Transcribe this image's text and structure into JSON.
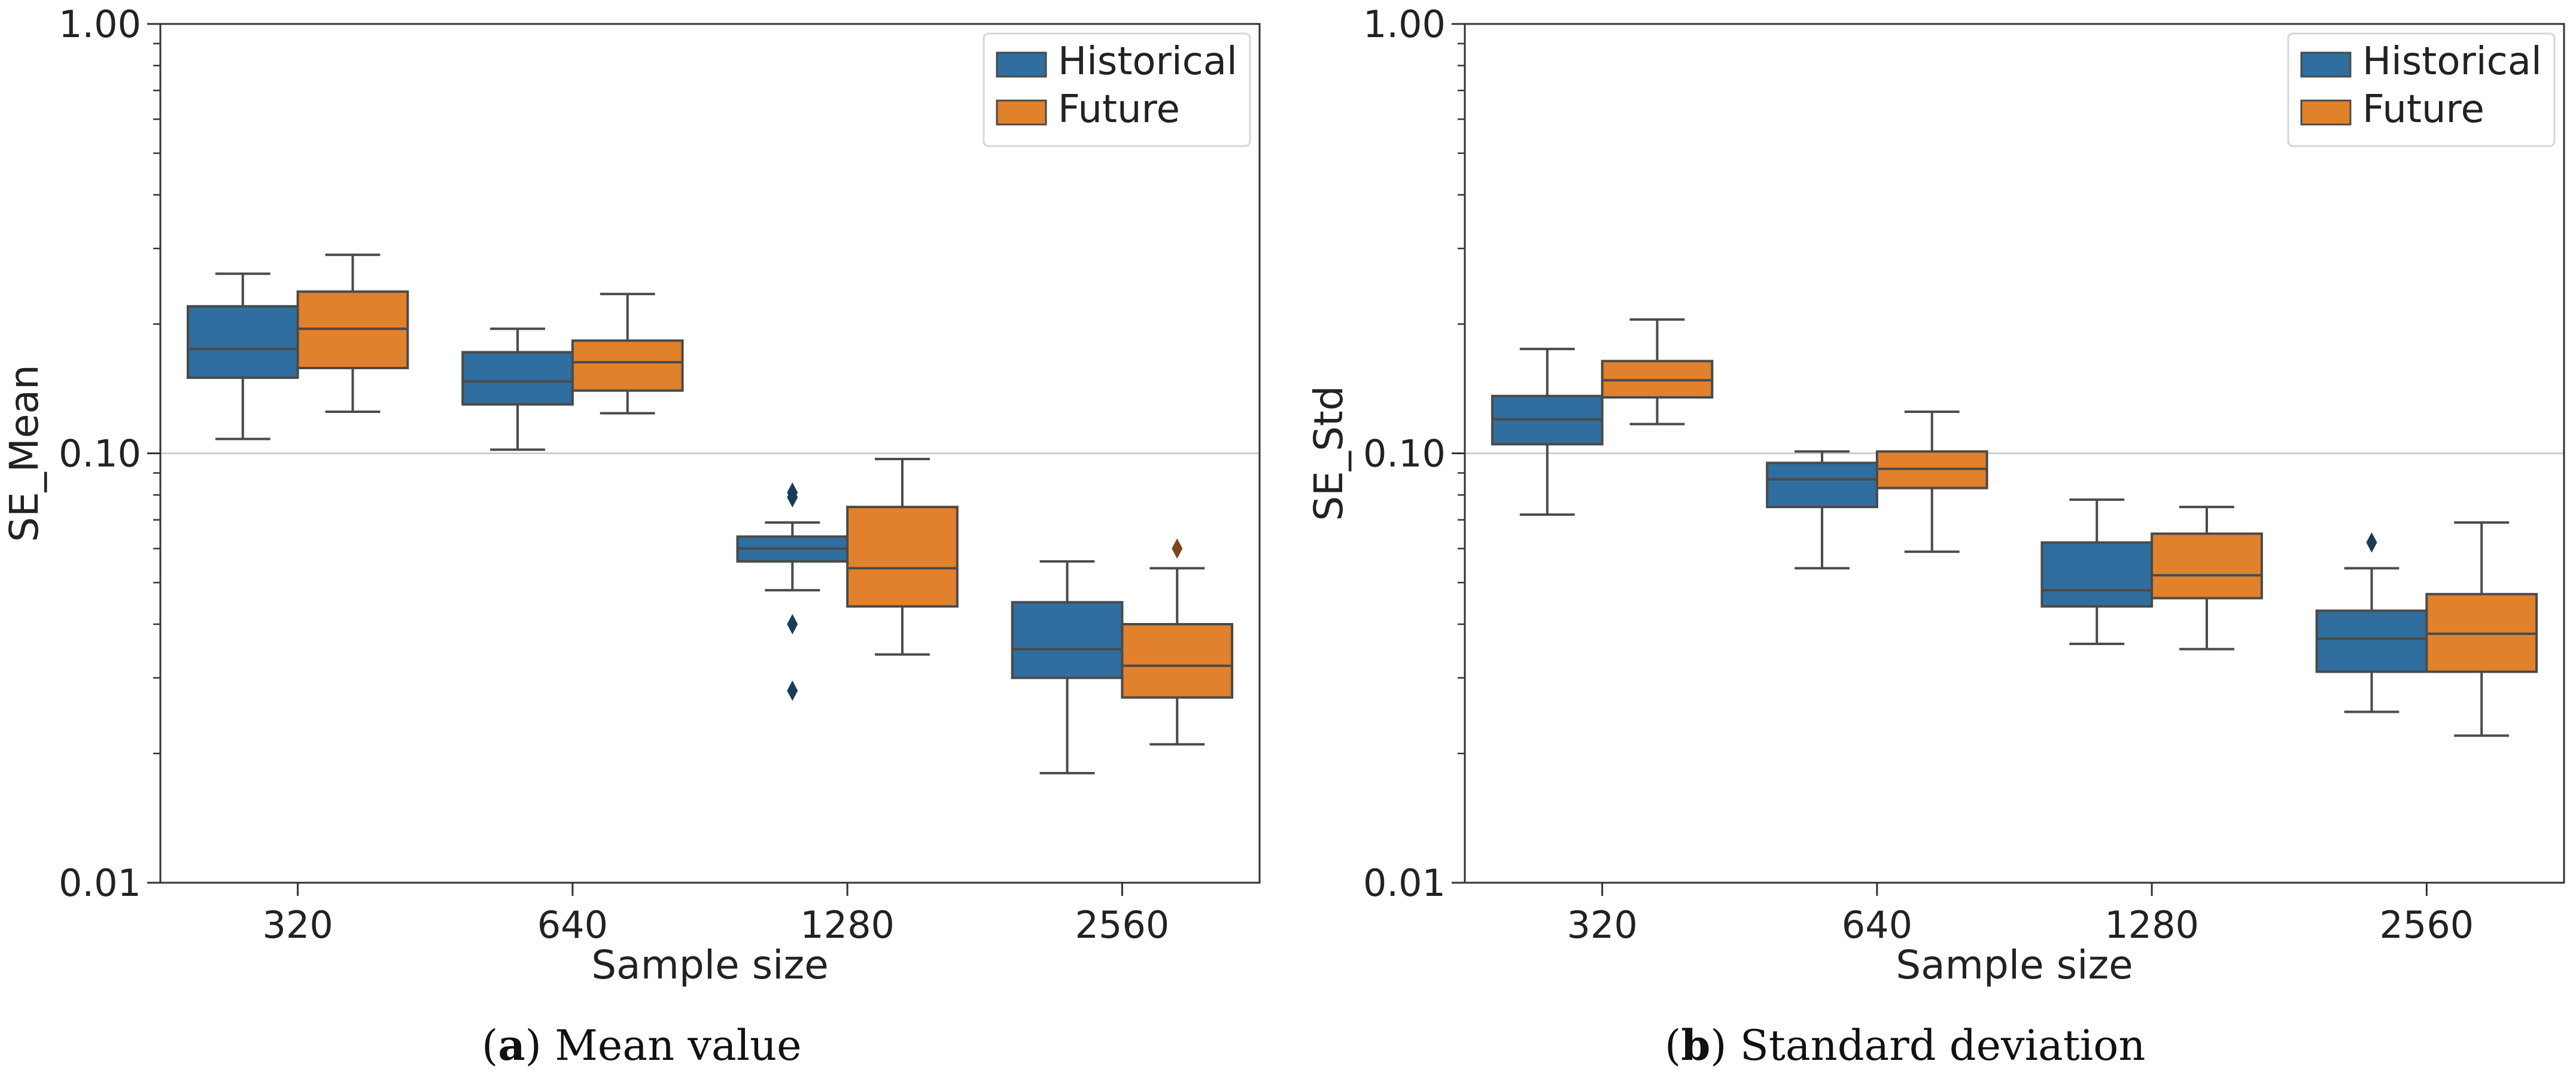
{
  "chart_data": [
    {
      "type": "box",
      "panel": "a",
      "caption_letter": "a",
      "caption_text": "Mean value",
      "xlabel": "Sample size",
      "ylabel": "SE_Mean",
      "yscale": "log",
      "ylim": [
        0.01,
        1.0
      ],
      "yticks": [
        0.01,
        0.1,
        1.0
      ],
      "ytick_labels": [
        "0.01",
        "0.10",
        "1.00"
      ],
      "reference_line": 0.1,
      "categories": [
        "320",
        "640",
        "1280",
        "2560"
      ],
      "legend": {
        "position": "top-right",
        "entries": [
          "Historical",
          "Future"
        ]
      },
      "series": [
        {
          "name": "Historical",
          "color": "#2f6e9e",
          "boxes": [
            {
              "whisker_low": 0.108,
              "q1": 0.15,
              "median": 0.175,
              "q3": 0.22,
              "whisker_high": 0.262,
              "outliers": []
            },
            {
              "whisker_low": 0.102,
              "q1": 0.13,
              "median": 0.147,
              "q3": 0.172,
              "whisker_high": 0.195,
              "outliers": []
            },
            {
              "whisker_low": 0.048,
              "q1": 0.056,
              "median": 0.06,
              "q3": 0.064,
              "whisker_high": 0.069,
              "outliers": [
                0.079,
                0.081,
                0.04,
                0.028
              ]
            },
            {
              "whisker_low": 0.018,
              "q1": 0.03,
              "median": 0.035,
              "q3": 0.045,
              "whisker_high": 0.056,
              "outliers": []
            }
          ]
        },
        {
          "name": "Future",
          "color": "#e1812c",
          "boxes": [
            {
              "whisker_low": 0.125,
              "q1": 0.158,
              "median": 0.195,
              "q3": 0.238,
              "whisker_high": 0.29,
              "outliers": []
            },
            {
              "whisker_low": 0.124,
              "q1": 0.14,
              "median": 0.163,
              "q3": 0.183,
              "whisker_high": 0.235,
              "outliers": []
            },
            {
              "whisker_low": 0.034,
              "q1": 0.044,
              "median": 0.054,
              "q3": 0.075,
              "whisker_high": 0.097,
              "outliers": []
            },
            {
              "whisker_low": 0.021,
              "q1": 0.027,
              "median": 0.032,
              "q3": 0.04,
              "whisker_high": 0.054,
              "outliers": [
                0.06
              ]
            }
          ]
        }
      ]
    },
    {
      "type": "box",
      "panel": "b",
      "caption_letter": "b",
      "caption_text": "Standard deviation",
      "xlabel": "Sample size",
      "ylabel": "SE_Std",
      "yscale": "log",
      "ylim": [
        0.01,
        1.0
      ],
      "yticks": [
        0.01,
        0.1,
        1.0
      ],
      "ytick_labels": [
        "0.01",
        "0.10",
        "1.00"
      ],
      "reference_line": 0.1,
      "categories": [
        "320",
        "640",
        "1280",
        "2560"
      ],
      "legend": {
        "position": "top-right",
        "entries": [
          "Historical",
          "Future"
        ]
      },
      "series": [
        {
          "name": "Historical",
          "color": "#2f6e9e",
          "boxes": [
            {
              "whisker_low": 0.072,
              "q1": 0.105,
              "median": 0.12,
              "q3": 0.136,
              "whisker_high": 0.175,
              "outliers": []
            },
            {
              "whisker_low": 0.054,
              "q1": 0.075,
              "median": 0.087,
              "q3": 0.095,
              "whisker_high": 0.101,
              "outliers": []
            },
            {
              "whisker_low": 0.036,
              "q1": 0.044,
              "median": 0.048,
              "q3": 0.062,
              "whisker_high": 0.078,
              "outliers": []
            },
            {
              "whisker_low": 0.025,
              "q1": 0.031,
              "median": 0.037,
              "q3": 0.043,
              "whisker_high": 0.054,
              "outliers": [
                0.062
              ]
            }
          ]
        },
        {
          "name": "Future",
          "color": "#e1812c",
          "boxes": [
            {
              "whisker_low": 0.117,
              "q1": 0.135,
              "median": 0.148,
              "q3": 0.164,
              "whisker_high": 0.205,
              "outliers": []
            },
            {
              "whisker_low": 0.059,
              "q1": 0.083,
              "median": 0.092,
              "q3": 0.101,
              "whisker_high": 0.125,
              "outliers": []
            },
            {
              "whisker_low": 0.035,
              "q1": 0.046,
              "median": 0.052,
              "q3": 0.065,
              "whisker_high": 0.075,
              "outliers": []
            },
            {
              "whisker_low": 0.022,
              "q1": 0.031,
              "median": 0.038,
              "q3": 0.047,
              "whisker_high": 0.069,
              "outliers": []
            }
          ]
        }
      ]
    }
  ]
}
